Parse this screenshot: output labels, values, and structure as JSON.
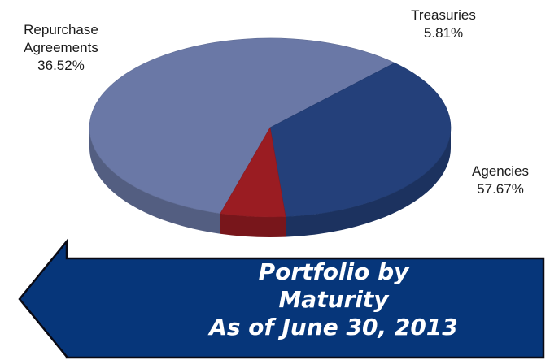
{
  "chart_data": {
    "type": "pie",
    "title": "",
    "slices": [
      {
        "label_lines": [
          "Agencies"
        ],
        "value_label": "57.67%",
        "value": 57.67,
        "color": "#6a78a6"
      },
      {
        "label_lines": [
          "Repurchase",
          "Agreements"
        ],
        "value_label": "36.52%",
        "value": 36.52,
        "color": "#24407a"
      },
      {
        "label_lines": [
          "Treasuries"
        ],
        "value_label": "5.81%",
        "value": 5.81,
        "color": "#9a1c22"
      }
    ]
  },
  "banner": {
    "lines": [
      "Portfolio by",
      "Maturity",
      "As of June 30, 2013"
    ],
    "fill": "#06367a",
    "stroke": "#0a0a14"
  }
}
